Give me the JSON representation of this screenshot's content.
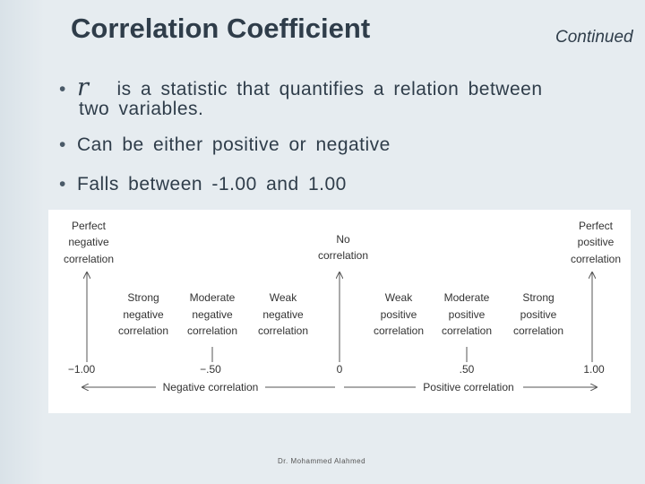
{
  "slide": {
    "title": "Correlation Coefficient",
    "continued": "Continued",
    "bullets": {
      "b1_symbol": "r",
      "b1_text": "is a statistic that quantifies a relation between",
      "b1_line2": "two variables.",
      "b2": "Can be either positive or negative",
      "b3": "Falls between -1.00 and 1.00"
    },
    "footer": "Dr. Mohammed Alahmed"
  },
  "diagram": {
    "top_labels": [
      [
        "Perfect",
        "negative",
        "correlation"
      ],
      [
        "No",
        "correlation"
      ],
      [
        "Perfect",
        "positive",
        "correlation"
      ]
    ],
    "strength_labels": [
      [
        "Strong",
        "negative",
        "correlation"
      ],
      [
        "Moderate",
        "negative",
        "correlation"
      ],
      [
        "Weak",
        "negative",
        "correlation"
      ],
      [
        "Weak",
        "positive",
        "correlation"
      ],
      [
        "Moderate",
        "positive",
        "correlation"
      ],
      [
        "Strong",
        "positive",
        "correlation"
      ]
    ],
    "scale_ticks": [
      "−1.00",
      "−.50",
      "0",
      ".50",
      "1.00"
    ],
    "negative_label": "Negative correlation",
    "positive_label": "Positive correlation"
  }
}
